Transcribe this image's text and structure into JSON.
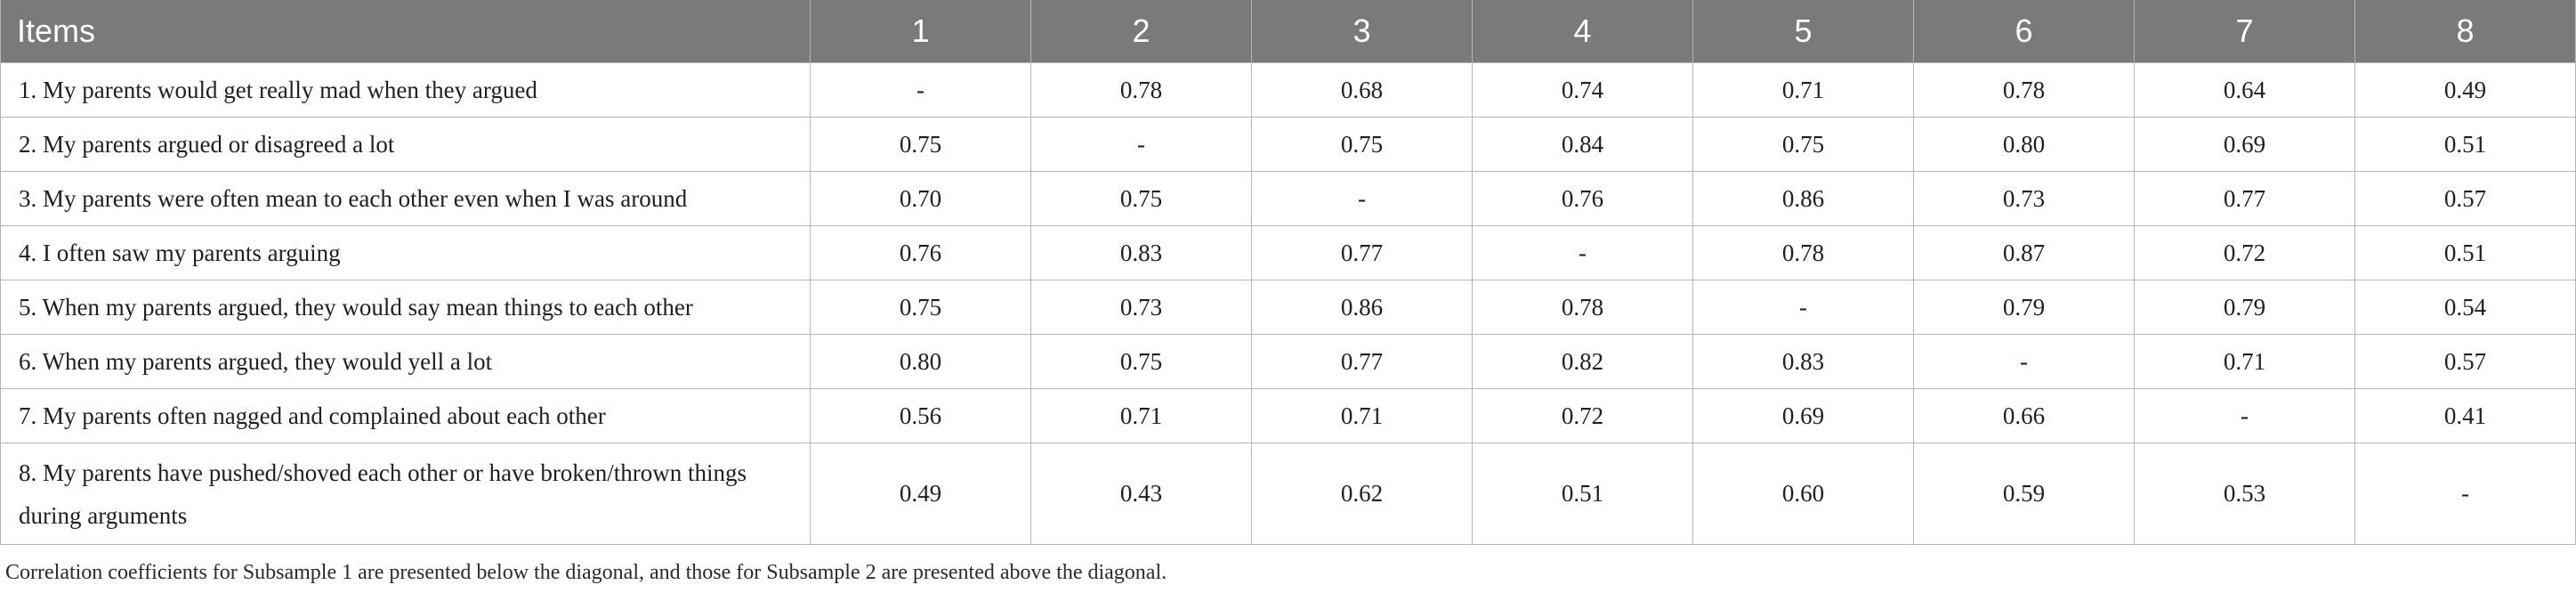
{
  "table": {
    "headers": [
      "Items",
      "1",
      "2",
      "3",
      "4",
      "5",
      "6",
      "7",
      "8"
    ],
    "rows": [
      {
        "item": "1. My parents would get really mad when they argued",
        "values": [
          "-",
          "0.78",
          "0.68",
          "0.74",
          "0.71",
          "0.78",
          "0.64",
          "0.49"
        ]
      },
      {
        "item": "2. My parents argued or disagreed a lot",
        "values": [
          "0.75",
          "-",
          "0.75",
          "0.84",
          "0.75",
          "0.80",
          "0.69",
          "0.51"
        ]
      },
      {
        "item": "3. My parents were often mean to each other even when I was around",
        "values": [
          "0.70",
          "0.75",
          "-",
          "0.76",
          "0.86",
          "0.73",
          "0.77",
          "0.57"
        ]
      },
      {
        "item": "4. I often saw my parents arguing",
        "values": [
          "0.76",
          "0.83",
          "0.77",
          "-",
          "0.78",
          "0.87",
          "0.72",
          "0.51"
        ]
      },
      {
        "item": "5. When my parents argued, they would say mean things to each other",
        "values": [
          "0.75",
          "0.73",
          "0.86",
          "0.78",
          "-",
          "0.79",
          "0.79",
          "0.54"
        ]
      },
      {
        "item": "6. When my parents argued, they would yell a lot",
        "values": [
          "0.80",
          "0.75",
          "0.77",
          "0.82",
          "0.83",
          "-",
          "0.71",
          "0.57"
        ]
      },
      {
        "item": "7. My parents often nagged and complained about each other",
        "values": [
          "0.56",
          "0.71",
          "0.71",
          "0.72",
          "0.69",
          "0.66",
          "-",
          "0.41"
        ]
      },
      {
        "item": "8. My parents have pushed/shoved each other or have broken/thrown things during arguments",
        "values": [
          "0.49",
          "0.43",
          "0.62",
          "0.51",
          "0.60",
          "0.59",
          "0.53",
          "-"
        ]
      }
    ]
  },
  "footnote": "Correlation coefficients for Subsample 1 are presented below the diagonal, and those for Subsample 2 are presented above the diagonal."
}
